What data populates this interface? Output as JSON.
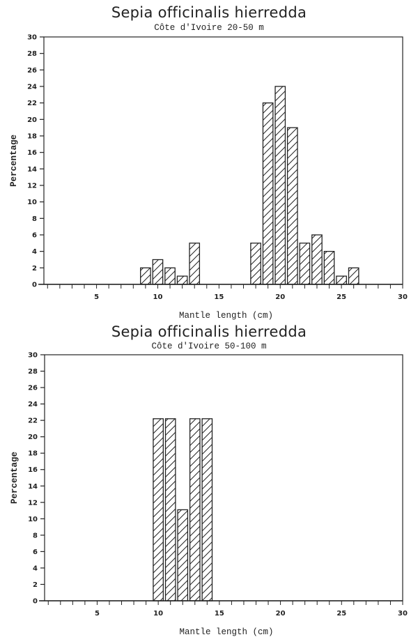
{
  "chart_data": [
    {
      "type": "bar",
      "title": "Sepia officinalis hierredda",
      "subtitle": "Côte d'Ivoire 20-50 m",
      "xlabel": "Mantle length (cm)",
      "ylabel": "Percentage",
      "xlim": [
        0.7,
        30
      ],
      "ylim": [
        0,
        30
      ],
      "xticks_labeled": [
        5,
        10,
        15,
        20,
        25,
        30
      ],
      "yticks": [
        0,
        2,
        4,
        6,
        8,
        10,
        12,
        14,
        16,
        18,
        20,
        22,
        24,
        26,
        28,
        30
      ],
      "grid": false,
      "legend": null,
      "bar_fill": "diagonal-hatch",
      "categories": [
        9,
        10,
        11,
        12,
        13,
        18,
        19,
        20,
        21,
        22,
        23,
        24,
        25,
        26
      ],
      "values": [
        2,
        3,
        2,
        1,
        5,
        5,
        22,
        24,
        19,
        5,
        6,
        4,
        1,
        2
      ]
    },
    {
      "type": "bar",
      "title": "Sepia officinalis hierredda",
      "subtitle": "Côte d'Ivoire 50-100 m",
      "xlabel": "Mantle length (cm)",
      "ylabel": "Percentage",
      "xlim": [
        0.7,
        30
      ],
      "ylim": [
        0,
        30
      ],
      "xticks_labeled": [
        5,
        10,
        15,
        20,
        25,
        30
      ],
      "yticks": [
        0,
        2,
        4,
        6,
        8,
        10,
        12,
        14,
        16,
        18,
        20,
        22,
        24,
        26,
        28,
        30
      ],
      "grid": false,
      "legend": null,
      "bar_fill": "diagonal-hatch",
      "categories": [
        10,
        11,
        12,
        13,
        14
      ],
      "values": [
        22.2,
        22.2,
        11.1,
        22.2,
        22.2
      ]
    }
  ],
  "colors": {
    "ink": "#222222",
    "background": "#ffffff"
  }
}
